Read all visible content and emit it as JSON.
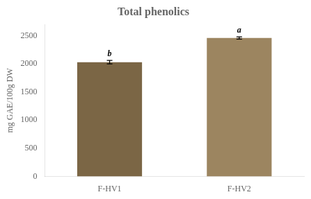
{
  "chart_data": {
    "type": "bar",
    "title": "Total phenolics",
    "categories": [
      "F-HV1",
      "F-HV2"
    ],
    "values": [
      2030,
      2460
    ],
    "errors": [
      30,
      20
    ],
    "colors": [
      "#7B6645",
      "#9C8560"
    ],
    "annotations": [
      "b",
      "a"
    ],
    "ylabel": "mg GAE/100g DW",
    "ylim": [
      0,
      2700
    ],
    "yticks": [
      0,
      500,
      1000,
      1500,
      2000,
      2500
    ],
    "grid": false
  }
}
